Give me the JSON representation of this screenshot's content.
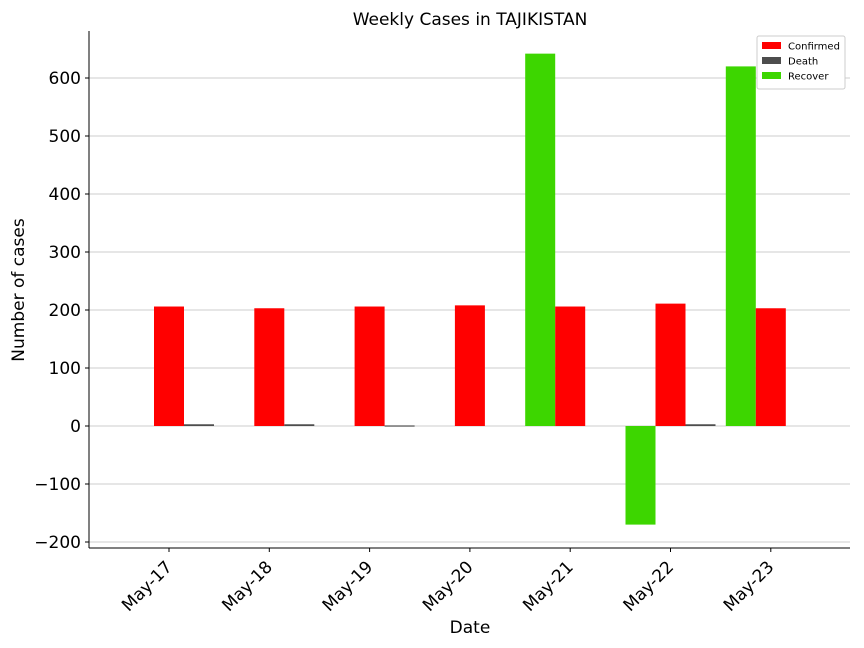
{
  "chart_data": {
    "type": "bar",
    "title": "Weekly Cases in TAJIKISTAN",
    "xlabel": "Date",
    "ylabel": "Number of cases",
    "categories": [
      "May-17",
      "May-18",
      "May-19",
      "May-20",
      "May-21",
      "May-22",
      "May-23"
    ],
    "series": [
      {
        "name": "Recover",
        "color": "#3dd600",
        "values": [
          0,
          0,
          0,
          0,
          642,
          -170,
          620
        ]
      },
      {
        "name": "Confirmed",
        "color": "#ff0000",
        "values": [
          206,
          203,
          206,
          208,
          206,
          211,
          203
        ]
      },
      {
        "name": "Death",
        "color": "#4d4d4d",
        "values": [
          3,
          3,
          1,
          0,
          0,
          3,
          0
        ]
      }
    ],
    "legend_order": [
      "Confirmed",
      "Death",
      "Recover"
    ],
    "ylim": [
      -210,
      680
    ],
    "yticks": [
      -200,
      -100,
      0,
      100,
      200,
      300,
      400,
      500,
      600
    ],
    "ytick_labels": [
      "−200",
      "−100",
      "0",
      "100",
      "200",
      "300",
      "400",
      "500",
      "600"
    ],
    "grid": "horizontal",
    "legend_position": "top-right"
  }
}
